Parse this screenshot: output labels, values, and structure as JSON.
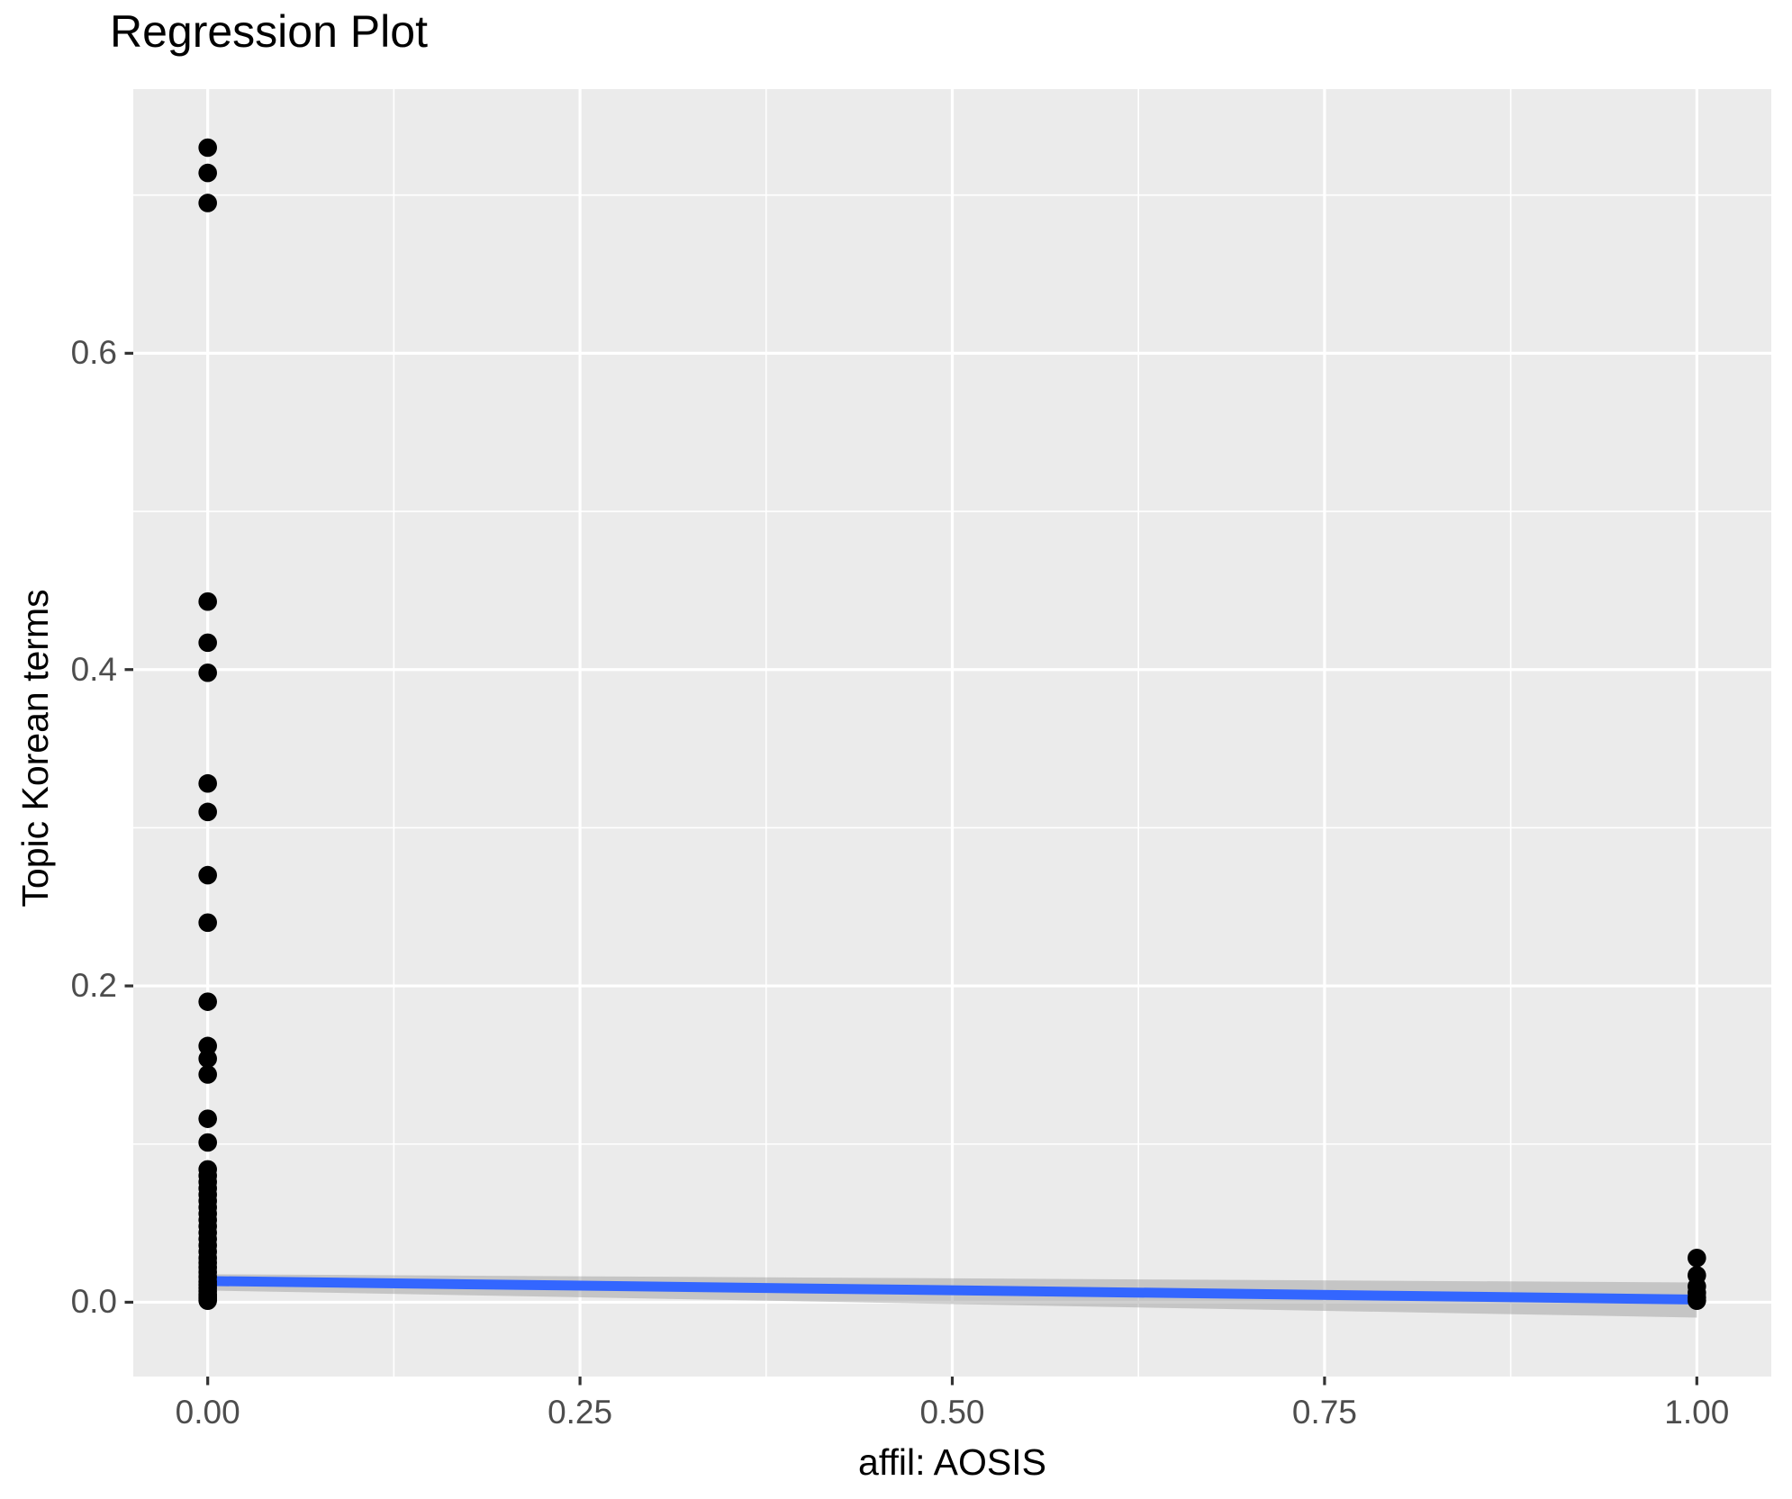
{
  "chart_data": {
    "type": "scatter",
    "title": "Regression Plot",
    "xlabel": "affil: AOSIS",
    "ylabel": "Topic Korean terms",
    "legend": "none",
    "grid_on": true,
    "xlim": [
      -0.05,
      1.05
    ],
    "ylim": [
      -0.047,
      0.767
    ],
    "x_ticks": {
      "values": [
        0,
        0.25,
        0.5,
        0.75,
        1.0
      ],
      "labels": [
        "0.00",
        "0.25",
        "0.50",
        "0.75",
        "1.00"
      ]
    },
    "y_ticks": {
      "values": [
        0,
        0.2,
        0.4,
        0.6
      ],
      "labels": [
        "0.0",
        "0.2",
        "0.4",
        "0.6"
      ]
    },
    "x_minor_ticks": [
      0.125,
      0.375,
      0.625,
      0.875
    ],
    "y_minor_ticks": [
      0.1,
      0.3,
      0.5,
      0.7
    ],
    "points": [
      {
        "x": 0,
        "y": [
          0.73,
          0.714,
          0.695,
          0.443,
          0.417,
          0.398,
          0.328,
          0.31,
          0.27,
          0.24,
          0.19,
          0.162,
          0.154,
          0.144,
          0.116,
          0.101,
          0.084,
          0.08,
          0.076,
          0.072,
          0.068,
          0.064,
          0.06,
          0.056,
          0.052,
          0.048,
          0.044,
          0.04,
          0.036,
          0.032,
          0.028,
          0.025,
          0.022,
          0.019,
          0.016,
          0.013,
          0.011,
          0.009,
          0.007,
          0.005,
          0.004,
          0.003,
          0.002,
          0.001
        ]
      },
      {
        "x": 1,
        "y": [
          0.028,
          0.017,
          0.01,
          0.006,
          0.003,
          0.001
        ]
      }
    ],
    "regression_line": {
      "x": [
        0,
        1
      ],
      "y": [
        0.0134,
        0.0017
      ]
    },
    "confidence_band": {
      "x": [
        0,
        1
      ],
      "upper": [
        0.0177,
        0.0125
      ],
      "lower": [
        0.0074,
        -0.0097
      ]
    },
    "colors": {
      "panel_bg": "#EBEBEB",
      "grid": "#FFFFFF",
      "point": "#000000",
      "line": "#3366FF",
      "band": "rgba(150,150,150,0.45)",
      "tick_label": "#4D4D4D",
      "tick_mark": "#333333",
      "text": "#000000"
    }
  }
}
